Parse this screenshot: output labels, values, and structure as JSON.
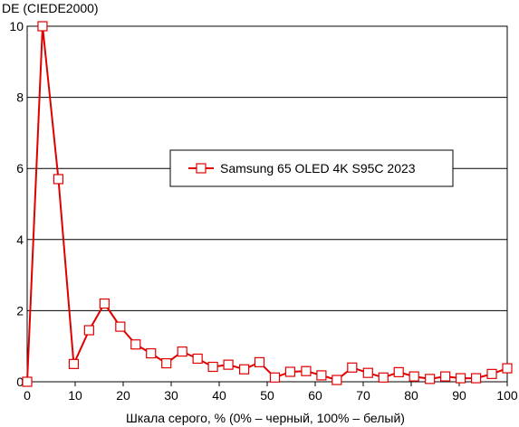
{
  "chart_data": {
    "type": "line",
    "ylabel": "DE (CIEDE2000)",
    "xlabel": "Шкала серого, % (0% – черный, 100% – белый)",
    "xlim": [
      0,
      100
    ],
    "ylim": [
      0,
      10
    ],
    "xticks": [
      0,
      10,
      20,
      30,
      40,
      50,
      60,
      70,
      80,
      90,
      100
    ],
    "yticks": [
      0,
      2,
      4,
      6,
      8,
      10
    ],
    "grid": "horizontal",
    "legend_position": "center-right",
    "series": [
      {
        "name": "Samsung 65 OLED 4K S95C 2023",
        "color": "#e00000",
        "marker": "open-square",
        "x": [
          0,
          3.2,
          6.5,
          9.7,
          12.9,
          16.1,
          19.4,
          22.6,
          25.8,
          29.0,
          32.3,
          35.5,
          38.7,
          41.9,
          45.2,
          48.4,
          51.6,
          54.8,
          58.1,
          61.3,
          64.5,
          67.7,
          71.0,
          74.2,
          77.4,
          80.6,
          83.9,
          87.1,
          90.3,
          93.5,
          96.8,
          100
        ],
        "y": [
          0.0,
          10.0,
          5.7,
          0.5,
          1.45,
          2.2,
          1.55,
          1.05,
          0.8,
          0.52,
          0.85,
          0.65,
          0.42,
          0.48,
          0.35,
          0.55,
          0.12,
          0.28,
          0.3,
          0.18,
          0.05,
          0.4,
          0.25,
          0.12,
          0.27,
          0.15,
          0.08,
          0.15,
          0.1,
          0.1,
          0.22,
          0.38
        ]
      }
    ]
  }
}
